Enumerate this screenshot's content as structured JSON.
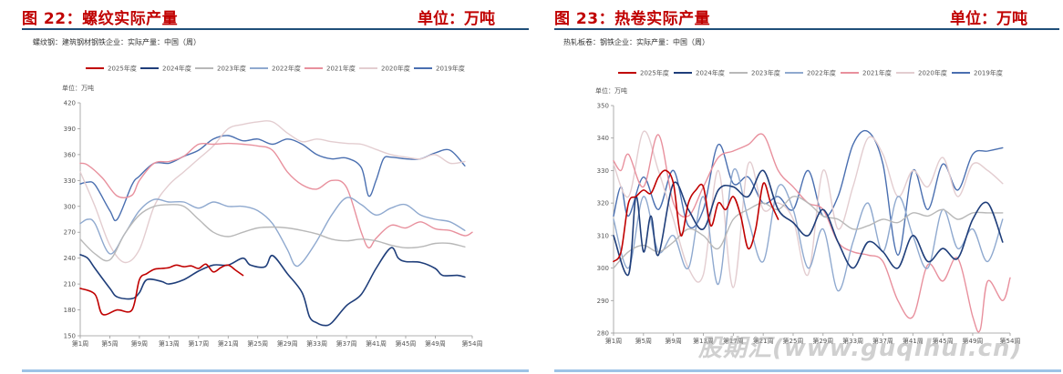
{
  "left": {
    "fig_title": "图 22：螺纹实际产量",
    "fig_unit": "单位：万吨",
    "subtitle": "螺纹钢：建筑钢材钢铁企业：实际产量：中国（周）"
  },
  "right": {
    "fig_title": "图 23：热卷实际产量",
    "fig_unit": "单位：万吨",
    "subtitle": "热轧板卷：钢铁企业：实际产量：中国（周）"
  },
  "watermark": "股期汇(www.guqihui.cn)",
  "colors": {
    "title_red": "#c00000",
    "rule_navy": "#1f4e79",
    "rule_light": "#9dc3e6"
  },
  "chart_data": [
    {
      "type": "line",
      "unit_label": "单位：万吨",
      "ylim": [
        150,
        420
      ],
      "yticks": [
        150,
        180,
        210,
        240,
        270,
        300,
        330,
        360,
        390,
        420
      ],
      "xlim": [
        1,
        54
      ],
      "xticks": [
        1,
        5,
        9,
        13,
        17,
        21,
        25,
        29,
        33,
        37,
        41,
        45,
        49,
        54
      ],
      "xtick_labels": [
        "第1周",
        "第5周",
        "第9周",
        "第13周",
        "第17周",
        "第21周",
        "第25周",
        "第29周",
        "第33周",
        "第37周",
        "第41周",
        "第45周",
        "第49周",
        "第54周"
      ],
      "legend_position": "top",
      "series": [
        {
          "name": "2025年度",
          "color": "#c00000",
          "width": 1.6,
          "x": [
            1,
            3,
            4,
            6,
            8,
            9,
            10,
            11,
            12,
            13,
            14,
            15,
            16,
            17,
            18,
            19,
            20,
            21,
            22,
            23
          ],
          "values": [
            205,
            198,
            175,
            180,
            180,
            215,
            222,
            227,
            228,
            229,
            232,
            230,
            231,
            228,
            233,
            224,
            229,
            232,
            226,
            220
          ]
        },
        {
          "name": "2024年度",
          "color": "#1f3e7a",
          "width": 1.6,
          "x": [
            1,
            2,
            3,
            5,
            6,
            8,
            9,
            10,
            12,
            13,
            15,
            17,
            19,
            21,
            23,
            24,
            26,
            27,
            29,
            31,
            32,
            33,
            34,
            35,
            37,
            39,
            41,
            43,
            44,
            45,
            47,
            49,
            50,
            52,
            53
          ],
          "values": [
            244,
            240,
            228,
            205,
            195,
            193,
            200,
            215,
            213,
            210,
            215,
            225,
            232,
            232,
            240,
            232,
            230,
            243,
            222,
            200,
            172,
            165,
            162,
            165,
            185,
            198,
            228,
            252,
            240,
            236,
            235,
            228,
            220,
            220,
            218
          ]
        },
        {
          "name": "2023年度",
          "color": "#b8b8b8",
          "width": 1.4,
          "x": [
            1,
            3,
            5,
            7,
            9,
            11,
            13,
            15,
            17,
            19,
            21,
            23,
            25,
            27,
            29,
            31,
            33,
            35,
            37,
            39,
            41,
            43,
            45,
            47,
            49,
            51,
            53
          ],
          "values": [
            262,
            245,
            238,
            268,
            290,
            300,
            302,
            300,
            285,
            270,
            265,
            270,
            275,
            276,
            275,
            272,
            268,
            262,
            260,
            262,
            260,
            255,
            252,
            253,
            257,
            257,
            253
          ]
        },
        {
          "name": "2022年度",
          "color": "#8fa9cf",
          "width": 1.4,
          "x": [
            1,
            2,
            3,
            5,
            7,
            9,
            11,
            13,
            15,
            17,
            19,
            21,
            23,
            25,
            27,
            29,
            30,
            31,
            33,
            35,
            37,
            39,
            41,
            43,
            45,
            47,
            49,
            51,
            53
          ],
          "values": [
            280,
            285,
            280,
            245,
            268,
            295,
            308,
            305,
            305,
            298,
            305,
            300,
            300,
            295,
            280,
            250,
            232,
            235,
            260,
            290,
            310,
            302,
            290,
            298,
            302,
            290,
            285,
            282,
            272
          ]
        },
        {
          "name": "2021年度",
          "color": "#e8909d",
          "width": 1.4,
          "x": [
            1,
            2,
            4,
            6,
            8,
            9,
            11,
            13,
            15,
            17,
            19,
            21,
            23,
            25,
            27,
            29,
            31,
            33,
            35,
            37,
            39,
            40,
            41,
            43,
            45,
            47,
            49,
            51,
            53,
            54
          ],
          "values": [
            350,
            348,
            333,
            312,
            313,
            330,
            350,
            352,
            358,
            372,
            372,
            373,
            372,
            370,
            365,
            340,
            325,
            320,
            330,
            322,
            270,
            252,
            263,
            278,
            275,
            282,
            274,
            272,
            266,
            270
          ]
        },
        {
          "name": "2020年度",
          "color": "#e3cdd0",
          "width": 1.4,
          "x": [
            1,
            3,
            5,
            7,
            9,
            11,
            13,
            15,
            17,
            19,
            21,
            23,
            25,
            27,
            29,
            31,
            33,
            35,
            37,
            39,
            41,
            43,
            45,
            47,
            49,
            51,
            53
          ],
          "values": [
            340,
            300,
            255,
            235,
            250,
            300,
            325,
            340,
            355,
            370,
            390,
            395,
            398,
            398,
            385,
            375,
            378,
            375,
            373,
            372,
            366,
            360,
            357,
            355,
            360,
            350,
            352
          ]
        },
        {
          "name": "2019年度",
          "color": "#4a6fb0",
          "width": 1.4,
          "x": [
            1,
            2,
            3,
            5,
            6,
            8,
            9,
            11,
            13,
            15,
            17,
            19,
            21,
            23,
            25,
            27,
            29,
            31,
            33,
            35,
            37,
            39,
            40,
            41,
            42,
            43,
            45,
            47,
            49,
            51,
            53
          ],
          "values": [
            326,
            328,
            325,
            295,
            285,
            325,
            335,
            350,
            350,
            358,
            365,
            378,
            382,
            376,
            378,
            372,
            378,
            372,
            360,
            355,
            356,
            345,
            312,
            330,
            355,
            357,
            355,
            355,
            362,
            365,
            347
          ]
        }
      ]
    },
    {
      "type": "line",
      "unit_label": "单位：万吨",
      "ylim": [
        280,
        350
      ],
      "yticks": [
        280,
        290,
        300,
        310,
        320,
        330,
        340,
        350
      ],
      "xlim": [
        1,
        54
      ],
      "xticks": [
        1,
        5,
        9,
        13,
        17,
        21,
        25,
        29,
        33,
        37,
        41,
        45,
        49,
        54
      ],
      "xtick_labels": [
        "第1周",
        "第5周",
        "第9周",
        "第13周",
        "第17周",
        "第21周",
        "第25周",
        "第29周",
        "第33周",
        "第37周",
        "第41周",
        "第45周",
        "第49周",
        "第54周"
      ],
      "legend_position": "top",
      "series": [
        {
          "name": "2025年度",
          "color": "#c00000",
          "width": 1.6,
          "x": [
            1,
            2,
            3,
            4,
            5,
            6,
            7,
            8,
            9,
            10,
            11,
            12,
            13,
            14,
            15,
            16,
            17,
            18,
            19,
            20,
            21,
            22,
            23
          ],
          "values": [
            302,
            305,
            320,
            322,
            324,
            323,
            328,
            330,
            326,
            310,
            320,
            324,
            325,
            313,
            320,
            318,
            322,
            316,
            306,
            312,
            326,
            320,
            315
          ]
        },
        {
          "name": "2024年度",
          "color": "#1f3e7a",
          "width": 1.6,
          "x": [
            1,
            3,
            4,
            5,
            6,
            7,
            9,
            11,
            13,
            15,
            17,
            19,
            21,
            23,
            25,
            27,
            29,
            31,
            33,
            35,
            37,
            39,
            41,
            43,
            45,
            47,
            49,
            51,
            53
          ],
          "values": [
            310,
            298,
            322,
            305,
            316,
            304,
            326,
            318,
            312,
            324,
            325,
            322,
            330,
            318,
            314,
            310,
            318,
            308,
            300,
            308,
            305,
            300,
            310,
            302,
            306,
            303,
            315,
            320,
            308
          ]
        },
        {
          "name": "2023年度",
          "color": "#b8b8b8",
          "width": 1.4,
          "x": [
            1,
            3,
            5,
            7,
            9,
            11,
            13,
            15,
            17,
            19,
            21,
            23,
            25,
            27,
            29,
            31,
            33,
            35,
            37,
            39,
            41,
            43,
            45,
            47,
            49,
            51,
            53
          ],
          "values": [
            300,
            305,
            307,
            305,
            308,
            312,
            310,
            306,
            315,
            318,
            320,
            318,
            322,
            320,
            316,
            315,
            312,
            313,
            315,
            314,
            317,
            316,
            318,
            315,
            317,
            317,
            317
          ]
        },
        {
          "name": "2022年度",
          "color": "#8fa9cf",
          "width": 1.4,
          "x": [
            1,
            3,
            5,
            7,
            9,
            11,
            13,
            15,
            17,
            19,
            21,
            23,
            25,
            27,
            29,
            31,
            33,
            35,
            37,
            39,
            41,
            43,
            45,
            47,
            49,
            51,
            53
          ],
          "values": [
            315,
            300,
            322,
            305,
            310,
            300,
            322,
            295,
            330,
            315,
            302,
            325,
            318,
            300,
            312,
            293,
            308,
            320,
            305,
            322,
            310,
            300,
            318,
            306,
            312,
            302,
            315
          ]
        },
        {
          "name": "2021年度",
          "color": "#e8909d",
          "width": 1.4,
          "x": [
            1,
            2,
            3,
            5,
            7,
            9,
            11,
            13,
            15,
            17,
            19,
            21,
            23,
            25,
            27,
            29,
            31,
            33,
            35,
            37,
            39,
            41,
            43,
            45,
            47,
            49,
            50,
            51,
            53,
            54
          ],
          "values": [
            333,
            330,
            335,
            325,
            341,
            320,
            316,
            325,
            334,
            336,
            338,
            341,
            330,
            325,
            320,
            318,
            308,
            305,
            304,
            302,
            290,
            285,
            301,
            296,
            303,
            285,
            281,
            296,
            290,
            297
          ]
        },
        {
          "name": "2020年度",
          "color": "#e3cdd0",
          "width": 1.4,
          "x": [
            1,
            3,
            5,
            7,
            9,
            11,
            13,
            15,
            17,
            19,
            21,
            23,
            25,
            27,
            29,
            31,
            33,
            35,
            37,
            39,
            41,
            43,
            45,
            47,
            49,
            51,
            53
          ],
          "values": [
            332,
            322,
            342,
            330,
            315,
            300,
            298,
            330,
            294,
            332,
            318,
            320,
            315,
            298,
            330,
            312,
            325,
            340,
            335,
            322,
            330,
            325,
            334,
            322,
            332,
            330,
            326
          ]
        },
        {
          "name": "2019年度",
          "color": "#4a6fb0",
          "width": 1.4,
          "x": [
            1,
            2,
            3,
            5,
            7,
            9,
            11,
            13,
            15,
            17,
            19,
            21,
            23,
            25,
            27,
            29,
            31,
            33,
            35,
            37,
            39,
            41,
            43,
            45,
            47,
            49,
            51,
            53
          ],
          "values": [
            316,
            325,
            316,
            328,
            318,
            330,
            313,
            318,
            338,
            326,
            328,
            320,
            322,
            318,
            330,
            316,
            322,
            338,
            342,
            332,
            304,
            330,
            318,
            332,
            324,
            335,
            336,
            337
          ]
        }
      ]
    }
  ]
}
